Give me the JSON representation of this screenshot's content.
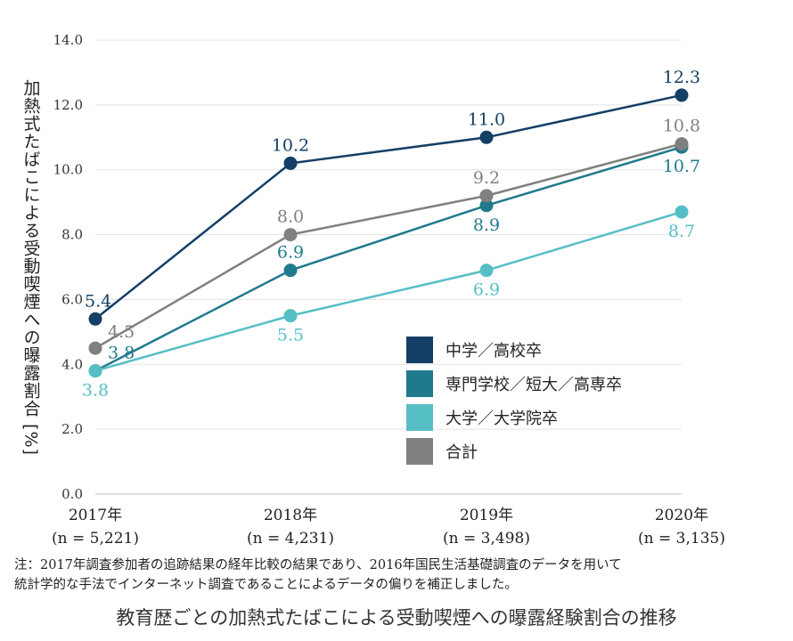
{
  "chart_data": {
    "type": "line",
    "title": "教育歴ごとの加熱式たばこによる受動喫煙への曝露経験割合の推移",
    "ylabel": "加熱式たばこによる受動喫煙への曝露割合 [%]",
    "xlabel": "",
    "ylim": [
      0,
      14
    ],
    "yticks": [
      "0.0",
      "2.0",
      "4.0",
      "6.0",
      "8.0",
      "10.0",
      "12.0",
      "14.0"
    ],
    "ytick_values": [
      0,
      2,
      4,
      6,
      8,
      10,
      12,
      14
    ],
    "categories": [
      {
        "year": "2017年",
        "n": "(n = 5,221)"
      },
      {
        "year": "2018年",
        "n": "(n = 4,231)"
      },
      {
        "year": "2019年",
        "n": "(n = 3,498)"
      },
      {
        "year": "2020年",
        "n": "(n = 3,135)"
      }
    ],
    "series": [
      {
        "name": "中学／高校卒",
        "color": "#133f66",
        "values": [
          5.4,
          10.2,
          11.0,
          12.3
        ],
        "labels": [
          "5.4",
          "10.2",
          "11.0",
          "12.3"
        ],
        "label_pos": [
          "above",
          "above",
          "above",
          "above"
        ]
      },
      {
        "name": "専門学校／短大／高専卒",
        "color": "#1f7a8c",
        "values": [
          3.8,
          6.9,
          8.9,
          10.7
        ],
        "labels": [
          "3.8",
          "6.9",
          "8.9",
          "10.7"
        ],
        "label_pos": [
          "right",
          "above",
          "below",
          "below"
        ]
      },
      {
        "name": "大学／大学院卒",
        "color": "#56bfc6",
        "values": [
          3.8,
          5.5,
          6.9,
          8.7
        ],
        "labels": [
          "3.8",
          "5.5",
          "6.9",
          "8.7"
        ],
        "label_pos": [
          "below",
          "below",
          "below",
          "below"
        ]
      },
      {
        "name": "合計",
        "color": "#808080",
        "values": [
          4.5,
          8.0,
          9.2,
          10.8
        ],
        "labels": [
          "4.5",
          "8.0",
          "9.2",
          "10.8"
        ],
        "label_pos": [
          "right",
          "above",
          "above",
          "above"
        ]
      }
    ],
    "legend_position": "inside-lower-right",
    "grid": "horizontal"
  },
  "note": {
    "line1": "注：2017年調査参加者の追跡結果の経年比較の結果であり、2016年国民生活基礎調査のデータを用いて",
    "line2": "統計学的な手法でインターネット調査であることによるデータの偏りを補正しました。"
  }
}
